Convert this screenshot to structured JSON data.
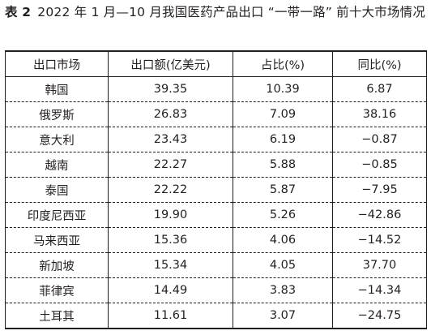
{
  "caption": {
    "label": "表 2",
    "text": "2022 年 1 月—10 月我国医药产品出口 “一带一路” 前十大市场情况"
  },
  "table": {
    "headers": [
      "出口市场",
      "出口额(亿美元)",
      "占比(%)",
      "同比(%)"
    ],
    "rows": [
      [
        "韩国",
        "39.35",
        "10.39",
        "6.87"
      ],
      [
        "俄罗斯",
        "26.83",
        "7.09",
        "38.16"
      ],
      [
        "意大利",
        "23.43",
        "6.19",
        "−0.87"
      ],
      [
        "越南",
        "22.27",
        "5.88",
        "−0.85"
      ],
      [
        "泰国",
        "22.22",
        "5.87",
        "−7.95"
      ],
      [
        "印度尼西亚",
        "19.90",
        "5.26",
        "−42.86"
      ],
      [
        "马来西亚",
        "15.36",
        "4.06",
        "−14.52"
      ],
      [
        "新加坡",
        "15.34",
        "4.05",
        "37.70"
      ],
      [
        "菲律宾",
        "14.49",
        "3.83",
        "−14.34"
      ],
      [
        "土耳其",
        "11.61",
        "3.07",
        "−24.75"
      ]
    ]
  }
}
